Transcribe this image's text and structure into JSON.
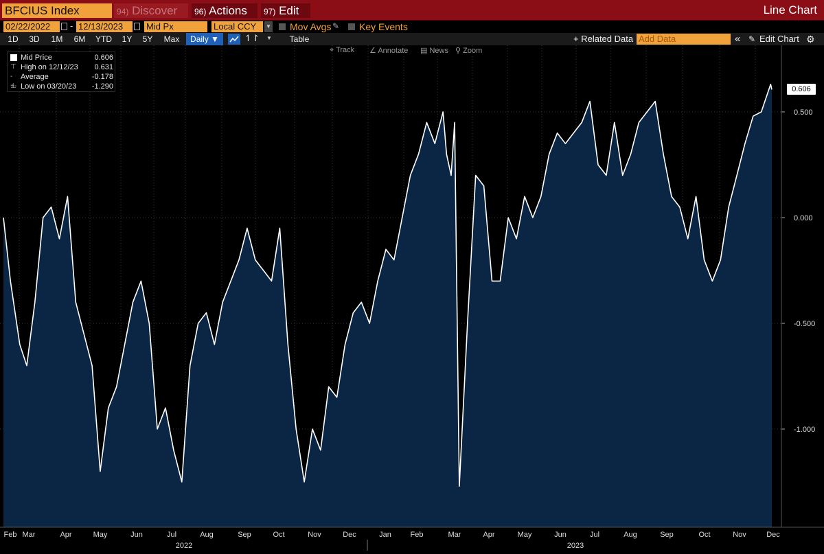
{
  "header": {
    "ticker": "BFCIUS Index",
    "menus": [
      {
        "num": "94)",
        "label": "Discover"
      },
      {
        "num": "96)",
        "label": "Actions"
      },
      {
        "num": "97)",
        "label": "Edit"
      }
    ],
    "window_title": "Line Chart"
  },
  "controls": {
    "start_date": "02/22/2022",
    "end_date": "12/13/2023",
    "date_sep": "-",
    "field": "Mid Px",
    "currency": "Local CCY",
    "mov_avgs": "Mov Avgs",
    "key_events": "Key Events"
  },
  "toolbar": {
    "periods": [
      "1D",
      "3D",
      "1M",
      "6M",
      "YTD",
      "1Y",
      "5Y",
      "Max"
    ],
    "frequency": "Daily ▼",
    "table": "Table",
    "related_data": "+ Related Data",
    "add_data_placeholder": "Add Data",
    "collapse": "«",
    "edit_chart": "Edit Chart",
    "settings": "⚙"
  },
  "chart_tools": {
    "track": "Track",
    "annotate": "Annotate",
    "news": "News",
    "zoom": "Zoom"
  },
  "legend": [
    {
      "label": "Mid Price",
      "value": "0.606"
    },
    {
      "label": "High on 12/12/23",
      "value": "0.631"
    },
    {
      "label": "Average",
      "value": "-0.178"
    },
    {
      "label": "Low on 03/20/23",
      "value": "-1.290"
    }
  ],
  "colors": {
    "line": "#ffffff",
    "fill": "#0b2645",
    "grid": "#3a3a3a",
    "header_red": "#8b0d16",
    "field_orange": "#f2a23a"
  },
  "chart_data": {
    "type": "area",
    "ylim": [
      -1.4,
      0.78
    ],
    "yticks": [
      0.5,
      0.0,
      -0.5,
      -1.0
    ],
    "ytick_labels": [
      "0.500",
      "0.000",
      "-0.500",
      "-1.000"
    ],
    "xtick_labels": [
      "Feb",
      "Mar",
      "Apr",
      "May",
      "Jun",
      "Jul",
      "Aug",
      "Sep",
      "Oct",
      "Nov",
      "Dec",
      "Jan",
      "Feb",
      "Mar",
      "Apr",
      "May",
      "Jun",
      "Jul",
      "Aug",
      "Sep",
      "Oct",
      "Nov",
      "Dec"
    ],
    "year_labels": [
      "2022",
      "2023"
    ],
    "current_value": "0.606",
    "x_start": "2022-02-22",
    "x_end": "2023-12-13",
    "series": [
      {
        "x": [
          "2022-02-22",
          "2022-02-28",
          "2022-03-08",
          "2022-03-14",
          "2022-03-21",
          "2022-03-28",
          "2022-04-04",
          "2022-04-11",
          "2022-04-18",
          "2022-04-25",
          "2022-05-02",
          "2022-05-09",
          "2022-05-16",
          "2022-05-23",
          "2022-05-30",
          "2022-06-06",
          "2022-06-13",
          "2022-06-20",
          "2022-06-27",
          "2022-07-04",
          "2022-07-11",
          "2022-07-18",
          "2022-07-25",
          "2022-08-01",
          "2022-08-08",
          "2022-08-15",
          "2022-08-22",
          "2022-08-29",
          "2022-09-05",
          "2022-09-12",
          "2022-09-19",
          "2022-09-26",
          "2022-10-03",
          "2022-10-10",
          "2022-10-17",
          "2022-10-24",
          "2022-10-31",
          "2022-11-07",
          "2022-11-14",
          "2022-11-21",
          "2022-11-28",
          "2022-12-05",
          "2022-12-12",
          "2022-12-19",
          "2022-12-26",
          "2023-01-02",
          "2023-01-09",
          "2023-01-16",
          "2023-01-23",
          "2023-01-30",
          "2023-02-06",
          "2023-02-13",
          "2023-02-20",
          "2023-02-27",
          "2023-03-06",
          "2023-03-09",
          "2023-03-13",
          "2023-03-16",
          "2023-03-20",
          "2023-03-27",
          "2023-04-03",
          "2023-04-10",
          "2023-04-17",
          "2023-04-24",
          "2023-05-01",
          "2023-05-08",
          "2023-05-15",
          "2023-05-22",
          "2023-05-29",
          "2023-06-05",
          "2023-06-12",
          "2023-06-19",
          "2023-06-26",
          "2023-07-03",
          "2023-07-10",
          "2023-07-17",
          "2023-07-24",
          "2023-07-31",
          "2023-08-07",
          "2023-08-14",
          "2023-08-21",
          "2023-08-28",
          "2023-09-04",
          "2023-09-11",
          "2023-09-18",
          "2023-09-25",
          "2023-10-02",
          "2023-10-09",
          "2023-10-16",
          "2023-10-23",
          "2023-10-30",
          "2023-11-06",
          "2023-11-13",
          "2023-11-20",
          "2023-11-27",
          "2023-12-04",
          "2023-12-12",
          "2023-12-13"
        ],
        "y": [
          0.0,
          -0.3,
          -0.6,
          -0.7,
          -0.4,
          0.0,
          0.05,
          -0.1,
          0.1,
          -0.4,
          -0.55,
          -0.7,
          -1.2,
          -0.9,
          -0.8,
          -0.6,
          -0.4,
          -0.3,
          -0.5,
          -1.0,
          -0.9,
          -1.1,
          -1.25,
          -0.7,
          -0.5,
          -0.45,
          -0.6,
          -0.4,
          -0.3,
          -0.2,
          -0.05,
          -0.2,
          -0.25,
          -0.3,
          -0.05,
          -0.6,
          -1.0,
          -1.25,
          -1.0,
          -1.1,
          -0.8,
          -0.85,
          -0.6,
          -0.45,
          -0.4,
          -0.5,
          -0.3,
          -0.15,
          -0.2,
          0.0,
          0.2,
          0.3,
          0.45,
          0.35,
          0.5,
          0.3,
          0.2,
          0.45,
          -1.27,
          -0.5,
          0.2,
          0.15,
          -0.3,
          -0.3,
          0.0,
          -0.1,
          0.1,
          0.0,
          0.1,
          0.3,
          0.4,
          0.35,
          0.4,
          0.45,
          0.55,
          0.25,
          0.2,
          0.45,
          0.2,
          0.3,
          0.45,
          0.5,
          0.55,
          0.3,
          0.1,
          0.05,
          -0.1,
          0.1,
          -0.2,
          -0.3,
          -0.2,
          0.05,
          0.2,
          0.35,
          0.48,
          0.5,
          0.631,
          0.606
        ]
      }
    ]
  }
}
